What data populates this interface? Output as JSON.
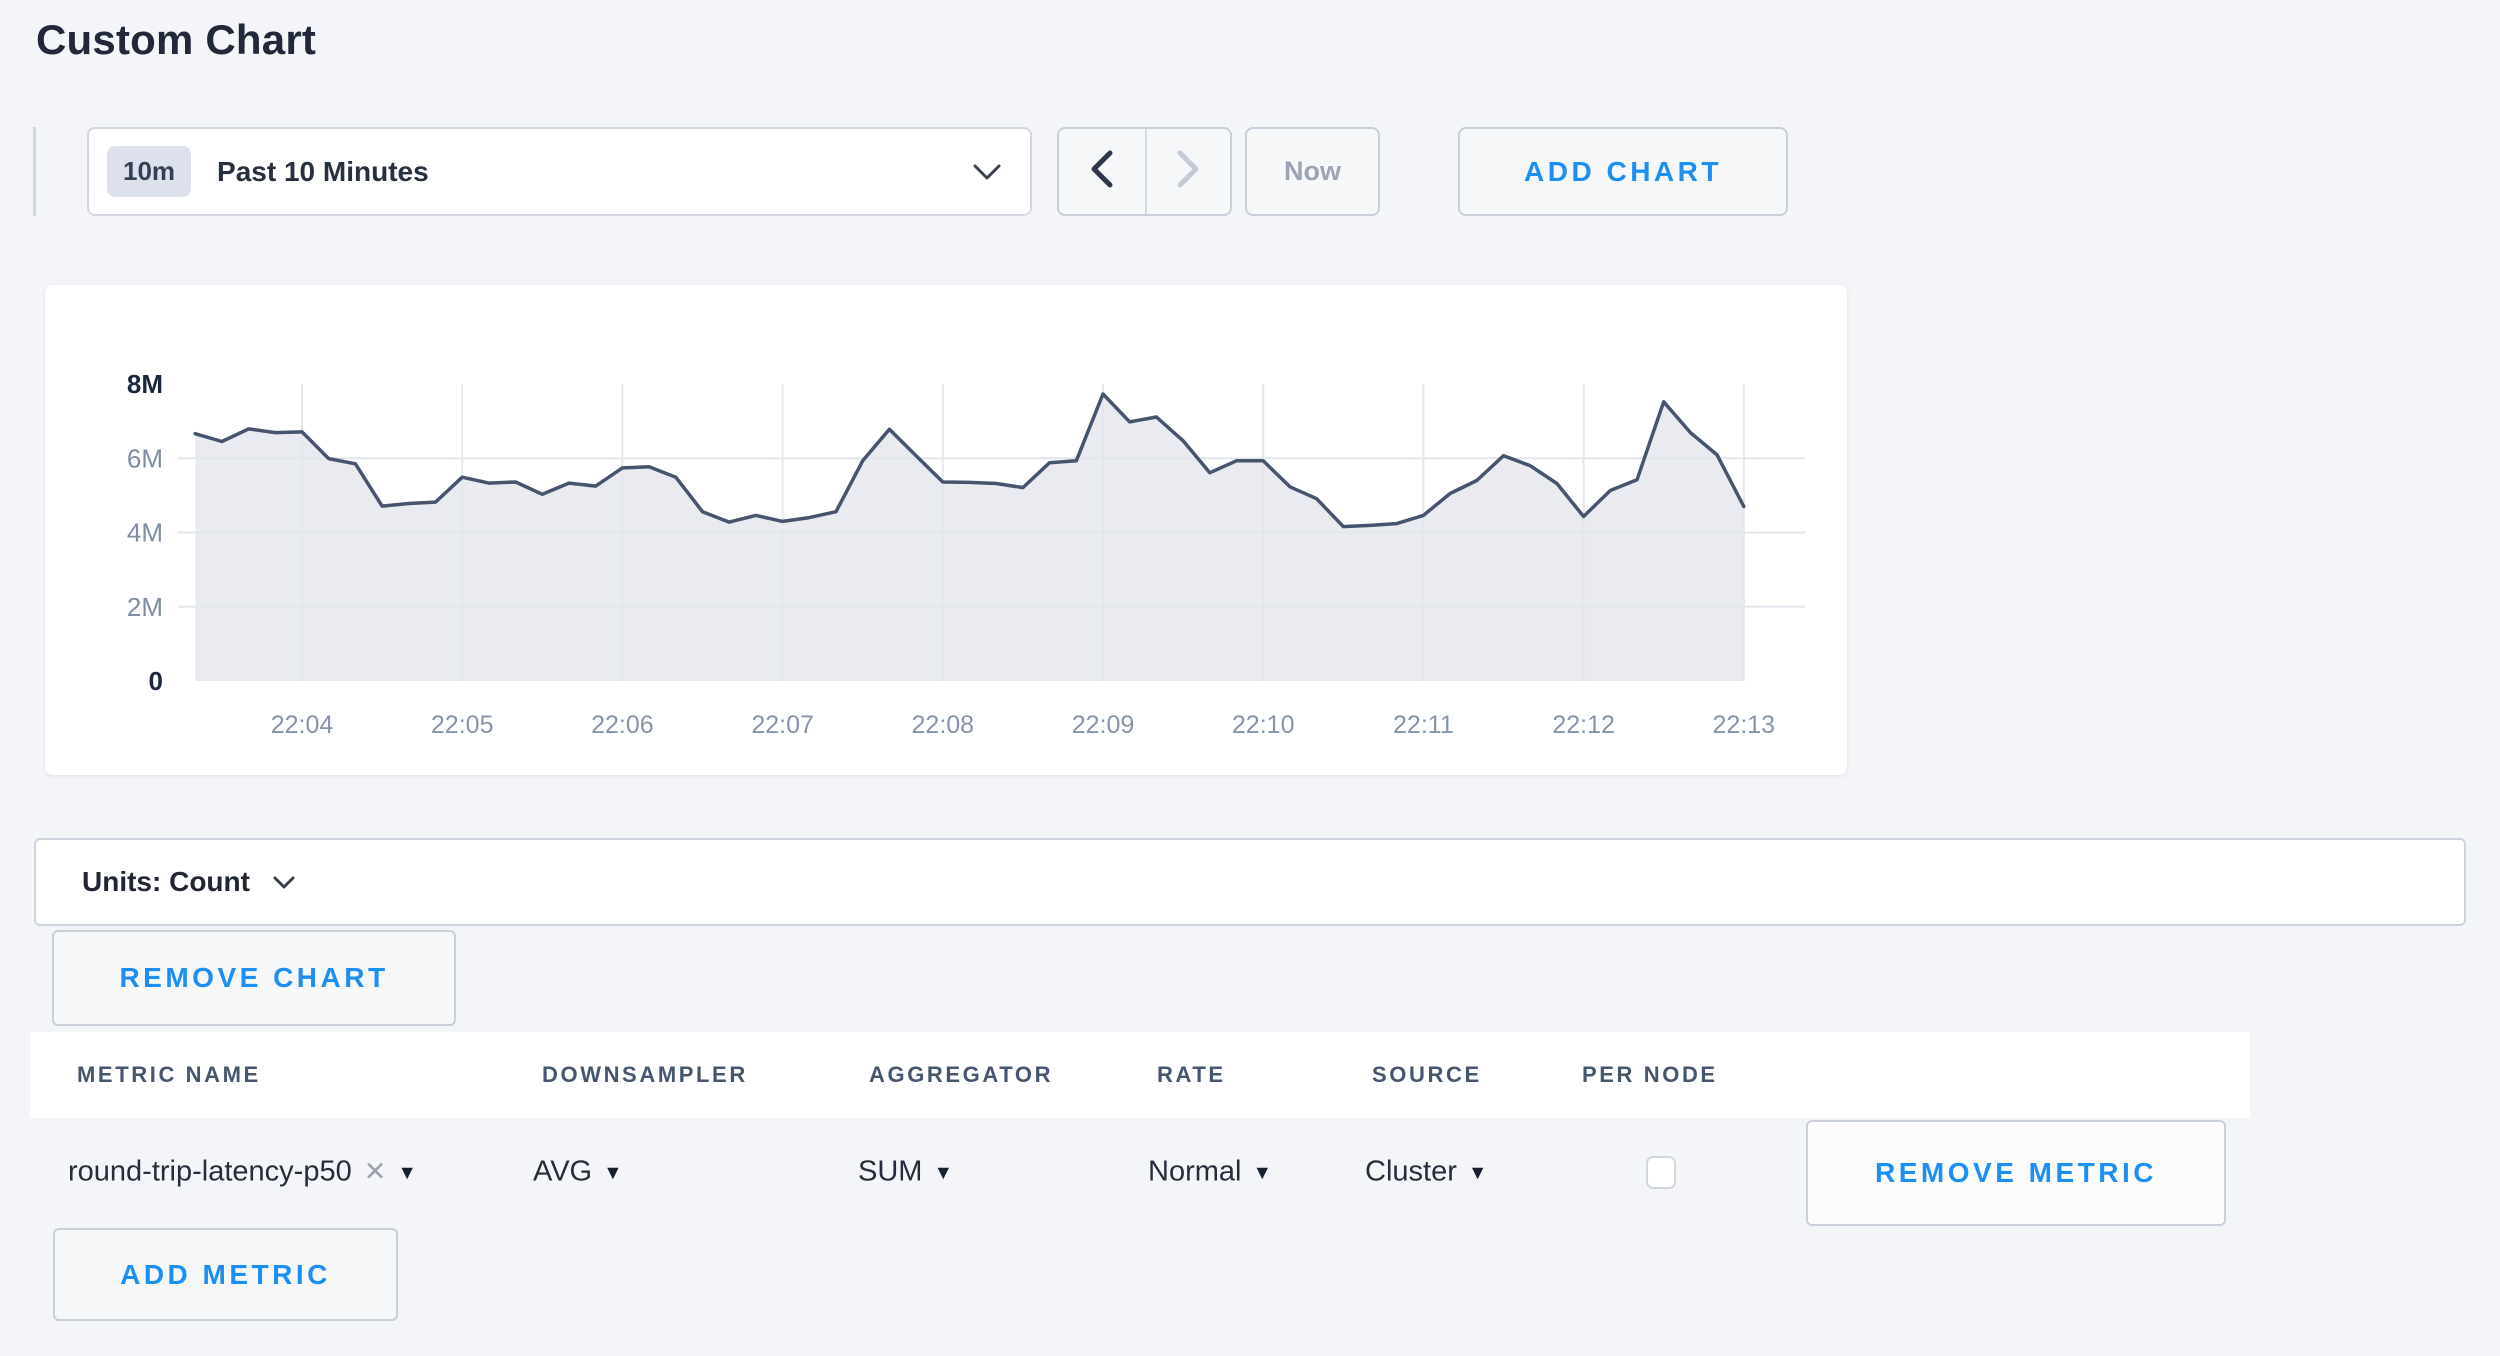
{
  "page": {
    "title": "Custom Chart"
  },
  "colors": {
    "background": "#f4f5f8",
    "accent_blue": "#1d8ff2",
    "chart_line": "#46546d",
    "chart_fill": "#e9ebf1",
    "gridline": "#e3e7ee",
    "tick_dark": "#1b2740",
    "tick_gray": "#7f8da3",
    "x_tick": "#8694aa"
  },
  "toolbar": {
    "range_badge": "10m",
    "range_label": "Past 10 Minutes",
    "now_label": "Now",
    "add_chart_label": "ADD CHART"
  },
  "chart_data": {
    "type": "area",
    "unit": "Count",
    "x_start_time": "22:03:20",
    "interval_seconds": 10,
    "x_tick_labels": [
      "22:04",
      "22:05",
      "22:06",
      "22:07",
      "22:08",
      "22:09",
      "22:10",
      "22:11",
      "22:12",
      "22:13"
    ],
    "y_ticks": [
      {
        "label": "8M",
        "value": 8
      },
      {
        "label": "6M",
        "value": 6
      },
      {
        "label": "4M",
        "value": 4
      },
      {
        "label": "2M",
        "value": 2
      },
      {
        "label": "0",
        "value": 0
      }
    ],
    "ylim": [
      0,
      8
    ],
    "values_millions": [
      6.66,
      6.45,
      6.79,
      6.69,
      6.71,
      5.99,
      5.85,
      4.71,
      4.78,
      4.82,
      5.49,
      5.33,
      5.36,
      5.03,
      5.33,
      5.25,
      5.74,
      5.77,
      5.49,
      4.56,
      4.28,
      4.46,
      4.3,
      4.4,
      4.56,
      5.93,
      6.78,
      6.07,
      5.36,
      5.35,
      5.32,
      5.21,
      5.88,
      5.93,
      7.73,
      6.98,
      7.11,
      6.47,
      5.61,
      5.93,
      5.93,
      5.23,
      4.91,
      4.16,
      4.19,
      4.24,
      4.46,
      5.05,
      5.4,
      6.07,
      5.8,
      5.32,
      4.43,
      5.13,
      5.42,
      7.52,
      6.69,
      6.09,
      4.7
    ]
  },
  "units_bar": {
    "label": "Units: Count"
  },
  "remove_chart_label": "REMOVE CHART",
  "metrics_table": {
    "headers": [
      "METRIC NAME",
      "DOWNSAMPLER",
      "AGGREGATOR",
      "RATE",
      "SOURCE",
      "PER NODE"
    ],
    "row": {
      "metric_name": "round-trip-latency-p50",
      "clear_glyph": "✕",
      "caret_glyph": "▾",
      "downsampler": "AVG",
      "aggregator": "SUM",
      "rate": "Normal",
      "source": "Cluster",
      "per_node_checked": false,
      "remove_label": "REMOVE METRIC"
    },
    "add_metric_label": "ADD METRIC"
  }
}
